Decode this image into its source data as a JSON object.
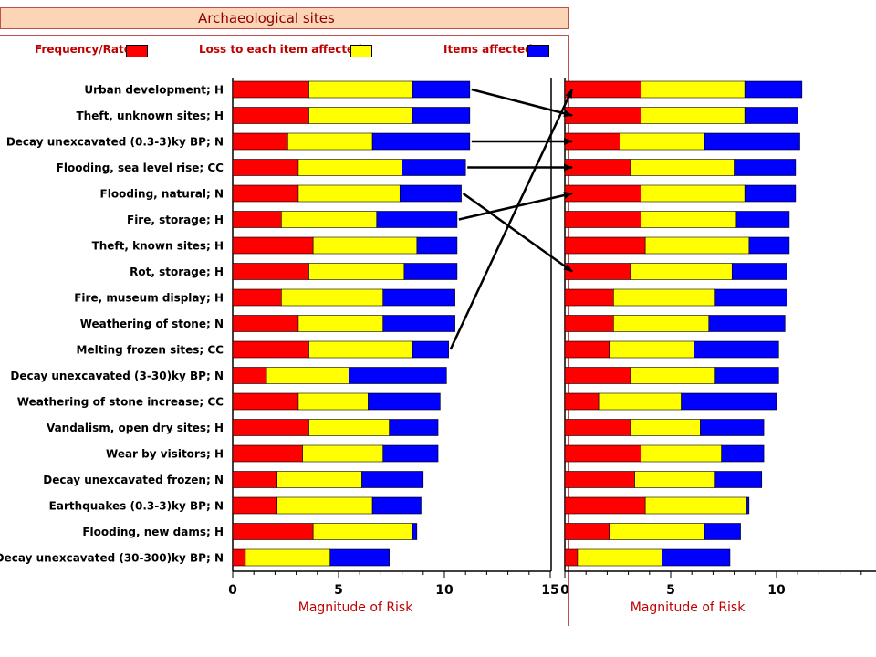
{
  "header": {
    "title": "Archaeological sites"
  },
  "legend": [
    {
      "label": "Frequency/Rate",
      "color": "#ff0000"
    },
    {
      "label": "Loss to each item affected",
      "color": "#ffff00"
    },
    {
      "label": "Items affected",
      "color": "#0000ff"
    }
  ],
  "colors": {
    "frequency": "#ff0000",
    "loss": "#ffff00",
    "items": "#0000ff"
  },
  "chart_data": [
    {
      "type": "bar",
      "orientation": "horizontal",
      "stacked": true,
      "xlabel": "Magnitude of Risk",
      "xlim": [
        0,
        15
      ],
      "xticks": [
        "0",
        "5",
        "10",
        "15"
      ],
      "categories": [
        "Urban development; H",
        "Theft, unknown sites; H",
        "Decay unexcavated (0.3-3)ky BP; N",
        "Flooding, sea level rise; CC",
        "Flooding, natural; N",
        "Fire, storage; H",
        "Theft, known sites; H",
        "Rot, storage; H",
        "Fire, museum display; H",
        "Weathering of stone; N",
        "Melting frozen sites; CC",
        "Decay unexcavated (3-30)ky BP; N",
        "Weathering of stone increase; CC",
        "Vandalism, open dry sites; H",
        "Wear by visitors; H",
        "Decay unexcavated frozen; N",
        "Earthquakes (0.3-3)ky BP; N",
        "Flooding, new dams; H",
        "Decay unexcavated (30-300)ky BP; N"
      ],
      "series": [
        {
          "name": "Frequency/Rate",
          "values": [
            3.6,
            3.6,
            2.6,
            3.1,
            3.1,
            2.3,
            3.8,
            3.6,
            2.3,
            3.1,
            3.6,
            1.6,
            3.1,
            3.6,
            3.3,
            2.1,
            2.1,
            3.8,
            0.6
          ]
        },
        {
          "name": "Loss to each item affected",
          "values": [
            4.9,
            4.9,
            4.0,
            4.9,
            4.8,
            4.5,
            4.9,
            4.5,
            4.8,
            4.0,
            4.9,
            3.9,
            3.3,
            3.8,
            3.8,
            4.0,
            4.5,
            4.7,
            4.0
          ]
        },
        {
          "name": "Items affected",
          "values": [
            2.7,
            2.7,
            4.6,
            3.0,
            2.9,
            3.8,
            1.9,
            2.5,
            3.4,
            3.4,
            1.7,
            4.6,
            3.4,
            2.3,
            2.6,
            2.9,
            2.3,
            0.2,
            2.8
          ]
        }
      ]
    },
    {
      "type": "bar",
      "orientation": "horizontal",
      "stacked": true,
      "xlabel": "Magnitude of Risk",
      "xlim": [
        0,
        15
      ],
      "xticks": [
        "0",
        "5",
        "10"
      ],
      "series": [
        {
          "name": "Frequency/Rate",
          "values": [
            3.6,
            3.6,
            2.6,
            3.1,
            3.6,
            3.6,
            3.8,
            3.1,
            2.3,
            2.3,
            2.1,
            3.1,
            1.6,
            3.1,
            3.6,
            3.3,
            3.8,
            2.1,
            0.6
          ]
        },
        {
          "name": "Loss to each item affected",
          "values": [
            4.9,
            4.9,
            4.0,
            4.9,
            4.9,
            4.5,
            4.9,
            4.8,
            4.8,
            4.5,
            4.0,
            4.0,
            3.9,
            3.3,
            3.8,
            3.8,
            4.8,
            4.5,
            4.0
          ]
        },
        {
          "name": "Items affected",
          "values": [
            2.7,
            2.5,
            4.5,
            2.9,
            2.4,
            2.5,
            1.9,
            2.6,
            3.4,
            3.6,
            4.0,
            3.0,
            4.5,
            3.0,
            2.0,
            2.2,
            0.1,
            1.7,
            3.2
          ]
        }
      ]
    }
  ]
}
